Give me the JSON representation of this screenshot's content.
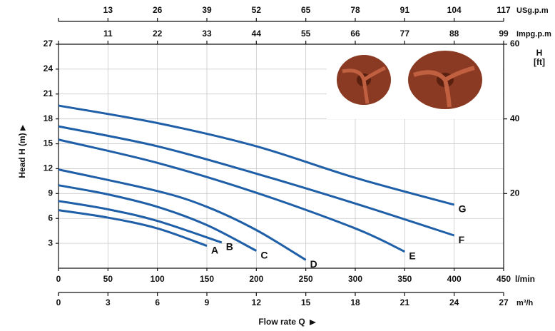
{
  "chart_data": {
    "type": "line",
    "xlabel": "Flow rate Q",
    "ylabel": "Head H (m)",
    "x_unit": "l/min",
    "xlim": [
      0,
      450
    ],
    "xticks": [
      0,
      50,
      100,
      150,
      200,
      250,
      300,
      350,
      400,
      450
    ],
    "ylim": [
      0,
      27
    ],
    "yticks": [
      3,
      6,
      9,
      12,
      15,
      18,
      21,
      24,
      27
    ],
    "y2label": [
      "H",
      "[ft]"
    ],
    "y2lim": [
      0,
      60
    ],
    "y2ticks": [
      20,
      40,
      60
    ],
    "secondary_x_axes": [
      {
        "unit": "m³/h",
        "position": "bottom",
        "lim": [
          0,
          27
        ],
        "ticks": [
          0,
          3,
          6,
          9,
          12,
          15,
          18,
          21,
          24,
          27
        ]
      },
      {
        "unit": "USg.p.m",
        "position": "top",
        "lim": [
          0,
          117
        ],
        "ticks": [
          13,
          26,
          39,
          52,
          65,
          78,
          91,
          104,
          117
        ]
      },
      {
        "unit": "Impg.p.m",
        "position": "top",
        "lim": [
          0,
          99
        ],
        "ticks": [
          11,
          22,
          33,
          44,
          55,
          66,
          77,
          88,
          99
        ]
      }
    ],
    "grid": true,
    "series": [
      {
        "name": "A",
        "color": "#1f5fa8",
        "x": [
          0,
          50,
          100,
          150
        ],
        "values": [
          7.0,
          6.1,
          4.8,
          2.7
        ]
      },
      {
        "name": "B",
        "color": "#1f5fa8",
        "x": [
          0,
          50,
          100,
          165
        ],
        "values": [
          8.1,
          7.1,
          5.7,
          3.1
        ]
      },
      {
        "name": "C",
        "color": "#1f5fa8",
        "x": [
          0,
          50,
          100,
          150,
          200
        ],
        "values": [
          10.0,
          8.9,
          7.4,
          5.2,
          2.1
        ]
      },
      {
        "name": "D",
        "color": "#1f5fa8",
        "x": [
          0,
          100,
          150,
          200,
          250
        ],
        "values": [
          11.9,
          9.3,
          7.4,
          4.6,
          1.0
        ]
      },
      {
        "name": "E",
        "color": "#1f5fa8",
        "x": [
          0,
          100,
          200,
          300,
          350
        ],
        "values": [
          15.5,
          12.7,
          9.1,
          4.8,
          2.0
        ]
      },
      {
        "name": "F",
        "color": "#1f5fa8",
        "x": [
          0,
          100,
          200,
          300,
          400
        ],
        "values": [
          17.1,
          14.7,
          11.4,
          7.8,
          3.95
        ]
      },
      {
        "name": "G",
        "color": "#1f5fa8",
        "x": [
          0,
          100,
          200,
          300,
          400
        ],
        "values": [
          19.6,
          17.5,
          14.7,
          10.9,
          7.65
        ]
      }
    ]
  }
}
